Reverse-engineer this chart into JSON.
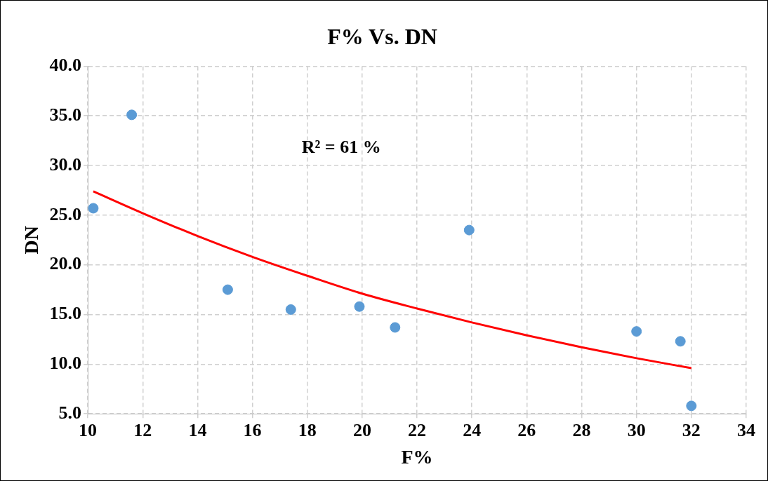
{
  "chart_data": {
    "type": "scatter",
    "title": "F% Vs. DN",
    "xlabel": "F%",
    "ylabel": "DN",
    "x": [
      10.2,
      11.6,
      15.1,
      17.4,
      19.9,
      21.2,
      23.9,
      30.0,
      31.6,
      32.0
    ],
    "series": [
      {
        "color": "#5b9bd5",
        "values": [
          25.7,
          35.1,
          17.5,
          15.5,
          15.8,
          13.7,
          23.5,
          13.3,
          12.3,
          5.8
        ]
      },
      {
        "type": "line",
        "color": "#ff0000",
        "x": [
          10.2,
          12,
          14,
          16,
          18,
          20,
          22,
          24,
          26,
          28,
          30,
          32
        ],
        "values": [
          27.4,
          25.2,
          22.9,
          20.8,
          18.9,
          17.1,
          15.6,
          14.2,
          12.9,
          11.7,
          10.6,
          9.6
        ],
        "marker": "none"
      }
    ],
    "xlim": [
      10,
      34
    ],
    "xticks": [
      10,
      12,
      14,
      16,
      18,
      20,
      22,
      24,
      26,
      28,
      30,
      32,
      34
    ],
    "ylim": [
      5,
      40
    ],
    "yticks": [
      {
        "value": 5,
        "label": "5.0"
      },
      {
        "value": 10,
        "label": "10.0"
      },
      {
        "value": 15,
        "label": "15.0"
      },
      {
        "value": 20,
        "label": "20.0"
      },
      {
        "value": 25,
        "label": "25.0"
      },
      {
        "value": 30,
        "label": "30.0"
      },
      {
        "value": 35,
        "label": "35.0"
      },
      {
        "value": 40,
        "label": "40.0"
      }
    ],
    "annotations": [
      "R² = 61 %"
    ],
    "grid": true,
    "marker": "circle",
    "legend": false
  }
}
